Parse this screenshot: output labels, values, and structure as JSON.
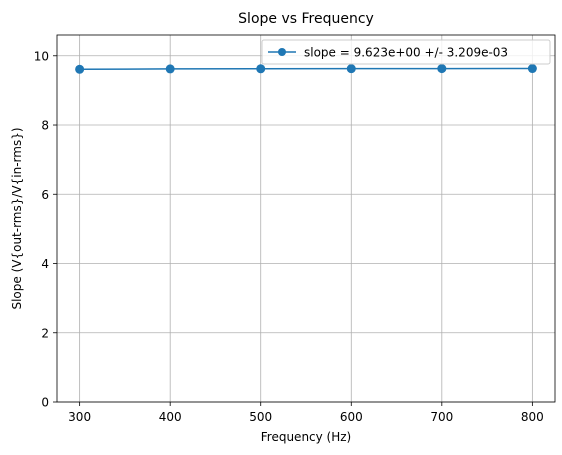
{
  "chart_data": {
    "type": "line",
    "title": "Slope vs Frequency",
    "xlabel": "Frequency (Hz)",
    "ylabel": "Slope (V{out-rms}/V{in-rms})",
    "x": [
      300,
      400,
      500,
      600,
      700,
      800
    ],
    "series": [
      {
        "name": "slope = 9.623e+00 +/- 3.209e-03",
        "values": [
          9.61,
          9.62,
          9.625,
          9.628,
          9.63,
          9.632
        ],
        "color": "#1f77b4"
      }
    ],
    "xlim": [
      275,
      825
    ],
    "ylim": [
      0,
      10.6
    ],
    "xticks": [
      300,
      400,
      500,
      600,
      700,
      800
    ],
    "yticks": [
      0,
      2,
      4,
      6,
      8,
      10
    ],
    "grid": true,
    "legend": "top-right"
  }
}
